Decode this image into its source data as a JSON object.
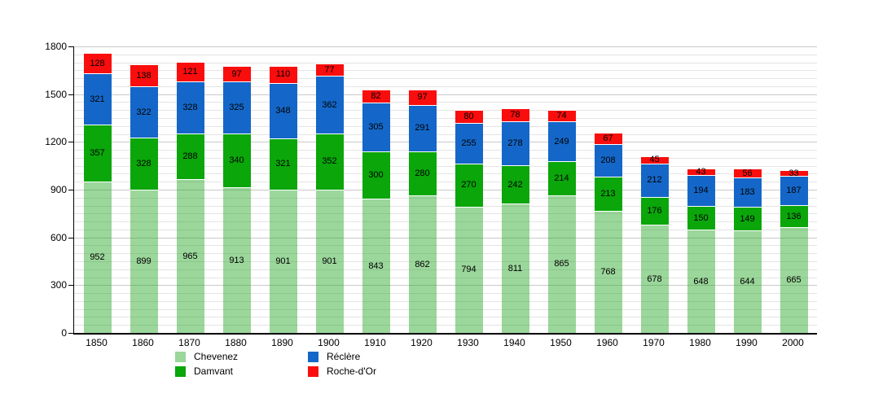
{
  "chart_data": {
    "type": "bar",
    "stacked": true,
    "title": "",
    "xlabel": "",
    "ylabel": "",
    "categories": [
      "1850",
      "1860",
      "1870",
      "1880",
      "1890",
      "1900",
      "1910",
      "1920",
      "1930",
      "1940",
      "1950",
      "1960",
      "1970",
      "1980",
      "1990",
      "2000"
    ],
    "series": [
      {
        "name": "Chevenez",
        "color": "rgba(34,164,34,0.45)",
        "solid_hex": "#A0D9A0",
        "values": [
          952,
          899,
          965,
          913,
          901,
          901,
          843,
          862,
          794,
          811,
          865,
          768,
          678,
          648,
          644,
          665
        ]
      },
      {
        "name": "Damvant",
        "color": "#0AA60A",
        "solid_hex": "#0AA60A",
        "values": [
          357,
          328,
          288,
          340,
          321,
          352,
          300,
          280,
          270,
          242,
          214,
          213,
          176,
          150,
          149,
          136
        ]
      },
      {
        "name": "Réclère",
        "color": "#1467C8",
        "solid_hex": "#1467C8",
        "values": [
          321,
          322,
          328,
          325,
          348,
          362,
          305,
          291,
          255,
          278,
          249,
          208,
          212,
          194,
          183,
          187
        ]
      },
      {
        "name": "Roche-d'Or",
        "color": "#FA0D0D",
        "solid_hex": "#FA0D0D",
        "values": [
          128,
          138,
          121,
          97,
          110,
          77,
          82,
          97,
          80,
          78,
          74,
          67,
          45,
          43,
          56,
          33
        ]
      }
    ],
    "ylim": [
      0,
      1800
    ],
    "y_major_interval": 300,
    "y_minor_interval": 50,
    "y_tick_labels": [
      "0",
      "300",
      "600",
      "900",
      "1200",
      "1500",
      "1800"
    ],
    "grid": "on",
    "legend_position": "bottom"
  }
}
